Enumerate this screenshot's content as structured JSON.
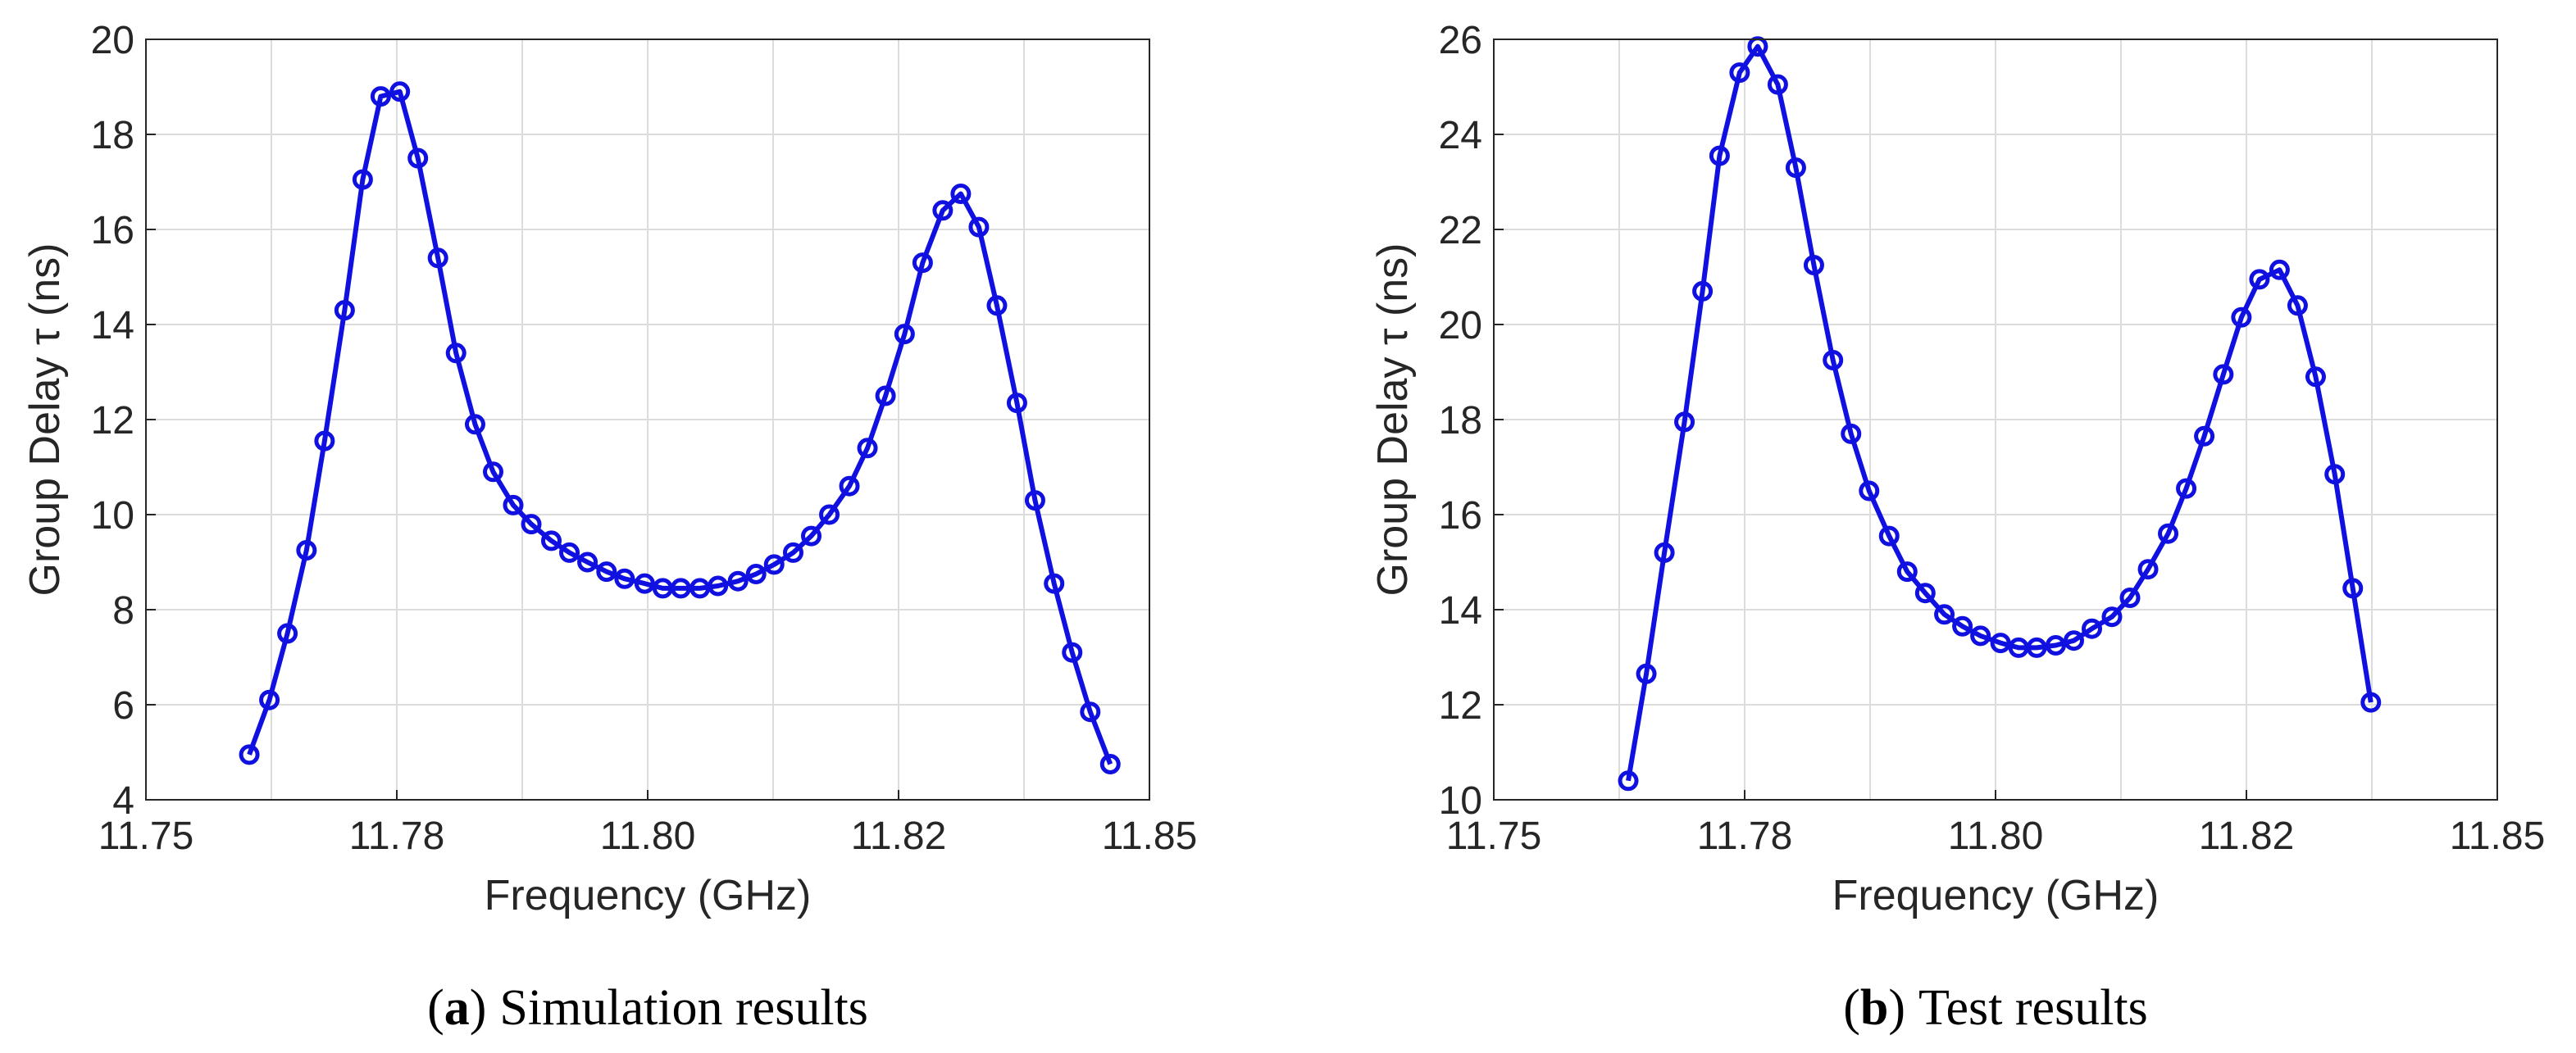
{
  "chart_data": [
    {
      "type": "line",
      "xlabel": "Frequency (GHz)",
      "ylabel": "Group Delay τ (ns)",
      "caption_parts": [
        "(",
        "a",
        ")",
        "Simulation results"
      ],
      "caption_bold": 1,
      "xlim": [
        11.75,
        11.85
      ],
      "xticks": [
        11.75,
        {
          "value": 11.775,
          "label": "11.78"
        },
        {
          "value": 11.8,
          "label": "11.80"
        },
        {
          "value": 11.825,
          "label": "11.82"
        },
        11.85
      ],
      "xminor_ticks": [
        11.7625,
        11.7875,
        11.8125,
        11.8375
      ],
      "ylim": [
        4,
        20
      ],
      "yticks": [
        4,
        6,
        8,
        10,
        12,
        14,
        16,
        18,
        20
      ],
      "grid": true,
      "markers": "circle",
      "x": [
        11.7603,
        11.7623,
        11.7641,
        11.766,
        11.7678,
        11.7698,
        11.7716,
        11.7734,
        11.7753,
        11.7771,
        11.7791,
        11.7809,
        11.7828,
        11.7846,
        11.7866,
        11.7884,
        11.7904,
        11.7922,
        11.794,
        11.7959,
        11.7977,
        11.7997,
        11.8015,
        11.8033,
        11.8052,
        11.807,
        11.809,
        11.8108,
        11.8126,
        11.8145,
        11.8163,
        11.8181,
        11.8201,
        11.8219,
        11.8237,
        11.8256,
        11.8274,
        11.8294,
        11.8312,
        11.833,
        11.8348,
        11.8368,
        11.8386,
        11.8405,
        11.8423,
        11.8441,
        11.8461
      ],
      "series": [
        {
          "color": "#1010e0",
          "values": [
            4.95,
            6.1,
            7.5,
            9.25,
            11.55,
            14.3,
            17.05,
            18.8,
            18.9,
            17.5,
            15.4,
            13.4,
            11.9,
            10.9,
            10.2,
            9.8,
            9.45,
            9.2,
            9.0,
            8.8,
            8.65,
            8.55,
            8.45,
            8.45,
            8.45,
            8.5,
            8.6,
            8.75,
            8.95,
            9.2,
            9.55,
            10.0,
            10.6,
            11.4,
            12.5,
            13.8,
            15.3,
            16.4,
            16.75,
            16.05,
            14.4,
            12.35,
            10.3,
            8.55,
            7.1,
            5.85,
            4.75
          ]
        }
      ]
    },
    {
      "type": "line",
      "xlabel": "Frequency (GHz)",
      "ylabel": "Group Delay τ (ns)",
      "caption_parts": [
        "(",
        "b",
        ")",
        "Test results"
      ],
      "caption_bold": 1,
      "xlim": [
        11.75,
        11.85
      ],
      "xticks": [
        11.75,
        {
          "value": 11.775,
          "label": "11.78"
        },
        {
          "value": 11.8,
          "label": "11.80"
        },
        {
          "value": 11.825,
          "label": "11.82"
        },
        11.85
      ],
      "xminor_ticks": [
        11.7625,
        11.7875,
        11.8125,
        11.8375
      ],
      "ylim": [
        10,
        26
      ],
      "yticks": [
        10,
        12,
        14,
        16,
        18,
        20,
        22,
        24,
        26
      ],
      "grid": true,
      "markers": "circle",
      "x": [
        11.7634,
        11.7652,
        11.767,
        11.769,
        11.7708,
        11.7725,
        11.7745,
        11.7763,
        11.7783,
        11.7801,
        11.7819,
        11.7838,
        11.7856,
        11.7874,
        11.7894,
        11.7912,
        11.793,
        11.7949,
        11.7967,
        11.7985,
        11.8005,
        11.8023,
        11.8041,
        11.806,
        11.8078,
        11.8096,
        11.8116,
        11.8134,
        11.8152,
        11.8172,
        11.819,
        11.8208,
        11.8227,
        11.8245,
        11.8263,
        11.8283,
        11.8301,
        11.8319,
        11.8338,
        11.8356,
        11.8374
      ],
      "series": [
        {
          "color": "#1010e0",
          "values": [
            10.4,
            12.65,
            15.2,
            17.95,
            20.7,
            23.55,
            25.3,
            25.85,
            25.05,
            23.3,
            21.25,
            19.25,
            17.7,
            16.5,
            15.55,
            14.8,
            14.35,
            13.9,
            13.65,
            13.45,
            13.3,
            13.2,
            13.2,
            13.25,
            13.35,
            13.6,
            13.85,
            14.25,
            14.85,
            15.6,
            16.55,
            17.65,
            18.95,
            20.15,
            20.95,
            21.15,
            20.4,
            18.9,
            16.85,
            14.45,
            12.05
          ]
        }
      ]
    }
  ]
}
